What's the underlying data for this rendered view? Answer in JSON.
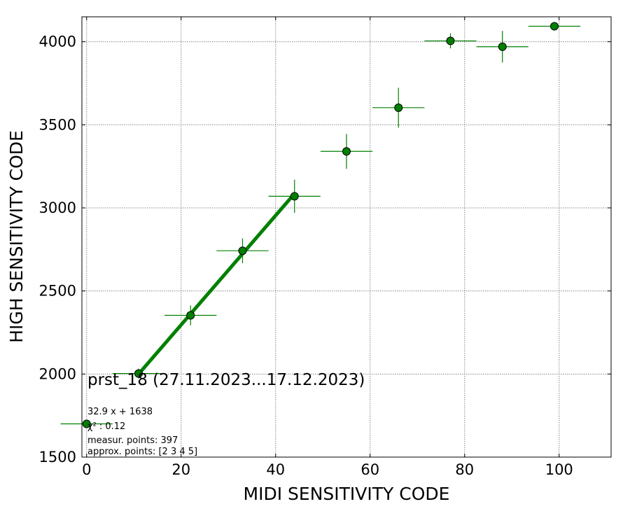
{
  "chart_data": {
    "type": "scatter",
    "xlabel": "MIDI SENSITIVITY CODE",
    "ylabel": "HIGH SENSITIVITY CODE",
    "xlim": [
      -1,
      111
    ],
    "ylim": [
      1500,
      4150
    ],
    "xticks": [
      0,
      20,
      40,
      60,
      80,
      100
    ],
    "yticks": [
      1500,
      2000,
      2500,
      3000,
      3500,
      4000
    ],
    "grid": true,
    "series": [
      {
        "type": "errorbar-scatter",
        "color": "#008000",
        "edge_color": "#000000",
        "points": [
          {
            "x": 0,
            "y": 1700,
            "xerr": 5.5,
            "yerr": 0
          },
          {
            "x": 11,
            "y": 2003,
            "xerr": 5.5,
            "yerr": 30
          },
          {
            "x": 22,
            "y": 2353,
            "xerr": 5.5,
            "yerr": 60
          },
          {
            "x": 33,
            "y": 2742,
            "xerr": 5.5,
            "yerr": 75
          },
          {
            "x": 44,
            "y": 3070,
            "xerr": 5.5,
            "yerr": 100
          },
          {
            "x": 55,
            "y": 3340,
            "xerr": 5.5,
            "yerr": 105
          },
          {
            "x": 66,
            "y": 3603,
            "xerr": 5.5,
            "yerr": 120
          },
          {
            "x": 77,
            "y": 4005,
            "xerr": 5.5,
            "yerr": 45
          },
          {
            "x": 88,
            "y": 3970,
            "xerr": 5.5,
            "yerr": 95
          },
          {
            "x": 99,
            "y": 4093,
            "xerr": 5.5,
            "yerr": 0
          }
        ]
      },
      {
        "type": "fit-line",
        "color": "#008000",
        "slope": 32.9,
        "intercept": 1638,
        "x_range": [
          11,
          44
        ]
      }
    ],
    "annotations": {
      "title_text": "prst_18 (27.11.2023...17.12.2023)",
      "fit_equation": "32.9 x + 1638",
      "chi2": "χ² : 0.12",
      "measur_points": "measur. points: 397",
      "approx_points": "approx. points: [2 3 4 5]"
    }
  }
}
